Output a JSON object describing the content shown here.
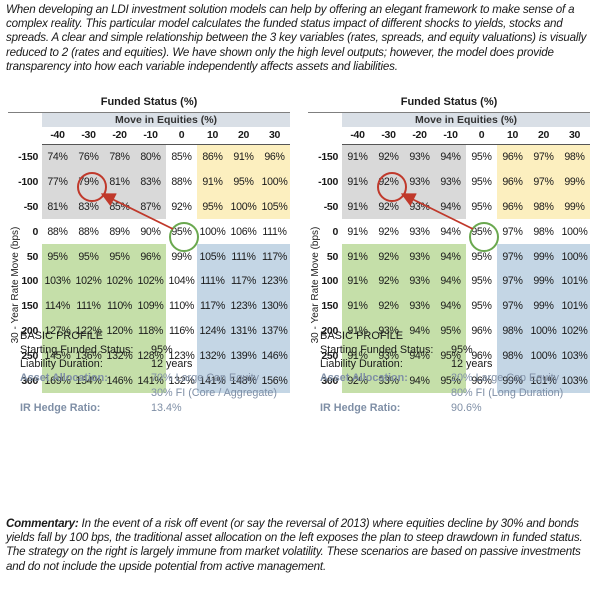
{
  "intro_text": "When developing an LDI investment solution models can help by offering an elegant framework to make sense of a complex reality. This particular model calculates the funded status impact of different shocks to yields, stocks and spreads. A clear and simple relationship between the 3 key variables (rates, spreads, and equity valuations) is visually reduced to 2 (rates and equities). We have shown only the high level outputs; however, the model does provide transparency into how each variable independently affects assets and liabilities.",
  "panels": [
    {
      "title": "Funded Status (%)",
      "equity_header": "Move in Equities (%)",
      "rate_axis_label": "30 - Year Rate Move (bps)",
      "columns": [
        "-40",
        "-30",
        "-20",
        "-10",
        "0",
        "10",
        "20",
        "30"
      ],
      "rows": [
        {
          "rate": "-150",
          "cells": [
            "74%",
            "76%",
            "78%",
            "80%",
            "85%",
            "86%",
            "91%",
            "96%"
          ]
        },
        {
          "rate": "-100",
          "cells": [
            "77%",
            "79%",
            "81%",
            "83%",
            "88%",
            "91%",
            "95%",
            "100%"
          ]
        },
        {
          "rate": "-50",
          "cells": [
            "81%",
            "83%",
            "85%",
            "87%",
            "92%",
            "95%",
            "100%",
            "105%"
          ]
        },
        {
          "rate": "0",
          "cells": [
            "88%",
            "88%",
            "89%",
            "90%",
            "95%",
            "100%",
            "106%",
            "111%"
          ]
        },
        {
          "rate": "50",
          "cells": [
            "95%",
            "95%",
            "95%",
            "96%",
            "99%",
            "105%",
            "111%",
            "117%"
          ]
        },
        {
          "rate": "100",
          "cells": [
            "103%",
            "102%",
            "102%",
            "102%",
            "104%",
            "111%",
            "117%",
            "123%"
          ]
        },
        {
          "rate": "150",
          "cells": [
            "114%",
            "111%",
            "110%",
            "109%",
            "110%",
            "117%",
            "123%",
            "130%"
          ]
        },
        {
          "rate": "200",
          "cells": [
            "127%",
            "122%",
            "120%",
            "118%",
            "116%",
            "124%",
            "131%",
            "137%"
          ]
        },
        {
          "rate": "250",
          "cells": [
            "145%",
            "136%",
            "132%",
            "128%",
            "123%",
            "132%",
            "139%",
            "146%"
          ]
        },
        {
          "rate": "300",
          "cells": [
            "169%",
            "154%",
            "146%",
            "141%",
            "132%",
            "141%",
            "148%",
            "156%"
          ]
        }
      ],
      "profile": {
        "title": "BASIC PROFILE",
        "starting_label": "Starting Funded Status:",
        "starting_value": "95%",
        "duration_label": "Liability Duration:",
        "duration_value": "12 years",
        "allocation_label": "Asset Allocation:",
        "allocation_line1": "70% Large Cap Equity",
        "allocation_line2": "30% FI (Core / Aggregate)",
        "hedge_label": "IR Hedge Ratio:",
        "hedge_value": "13.4%"
      }
    },
    {
      "title": "Funded Status (%)",
      "equity_header": "Move in Equities (%)",
      "rate_axis_label": "30 - Year Rate Move (bps)",
      "columns": [
        "-40",
        "-30",
        "-20",
        "-10",
        "0",
        "10",
        "20",
        "30"
      ],
      "rows": [
        {
          "rate": "-150",
          "cells": [
            "91%",
            "92%",
            "93%",
            "94%",
            "95%",
            "96%",
            "97%",
            "98%"
          ]
        },
        {
          "rate": "-100",
          "cells": [
            "91%",
            "92%",
            "93%",
            "93%",
            "95%",
            "96%",
            "97%",
            "99%"
          ]
        },
        {
          "rate": "-50",
          "cells": [
            "91%",
            "92%",
            "93%",
            "94%",
            "95%",
            "96%",
            "98%",
            "99%"
          ]
        },
        {
          "rate": "0",
          "cells": [
            "91%",
            "92%",
            "93%",
            "94%",
            "95%",
            "97%",
            "98%",
            "100%"
          ]
        },
        {
          "rate": "50",
          "cells": [
            "91%",
            "92%",
            "93%",
            "94%",
            "95%",
            "97%",
            "99%",
            "100%"
          ]
        },
        {
          "rate": "100",
          "cells": [
            "91%",
            "92%",
            "93%",
            "94%",
            "95%",
            "97%",
            "99%",
            "101%"
          ]
        },
        {
          "rate": "150",
          "cells": [
            "91%",
            "92%",
            "93%",
            "94%",
            "95%",
            "97%",
            "99%",
            "101%"
          ]
        },
        {
          "rate": "200",
          "cells": [
            "91%",
            "93%",
            "94%",
            "95%",
            "96%",
            "98%",
            "100%",
            "102%"
          ]
        },
        {
          "rate": "250",
          "cells": [
            "91%",
            "93%",
            "94%",
            "95%",
            "96%",
            "98%",
            "100%",
            "103%"
          ]
        },
        {
          "rate": "300",
          "cells": [
            "92%",
            "93%",
            "94%",
            "95%",
            "96%",
            "99%",
            "101%",
            "103%"
          ]
        }
      ],
      "profile": {
        "title": "BASIC PROFILE",
        "starting_label": "Starting Funded Status:",
        "starting_value": "95%",
        "duration_label": "Liability Duration:",
        "duration_value": "12 years",
        "allocation_label": "Asset Allocation:",
        "allocation_line1": "20% Large Cap Equity",
        "allocation_line2": "80% FI (Long Duration)",
        "hedge_label": "IR Hedge Ratio:",
        "hedge_value": "90.6%"
      }
    }
  ],
  "commentary": {
    "lead": "Commentary:",
    "text": " In the event of a risk off event (or say the reversal of 2013) where equities decline by 30% and bonds yields fall by 100 bps, the traditional asset allocation on the left exposes the plan to steep drawdown in funded status. The strategy on the right is largely immune from market volatility. These scenarios are based on passive investments and do not include the upside potential from active management."
  },
  "colors": {
    "grey": "#d9d9d9",
    "yellow": "#fcefbf",
    "green": "#c5dfa9",
    "blue": "#c4d6e5",
    "header": "#d9dfe6",
    "highlight_red": "#c0392b",
    "highlight_green": "#6aa84f",
    "label_blue": "#7f8fa6"
  }
}
